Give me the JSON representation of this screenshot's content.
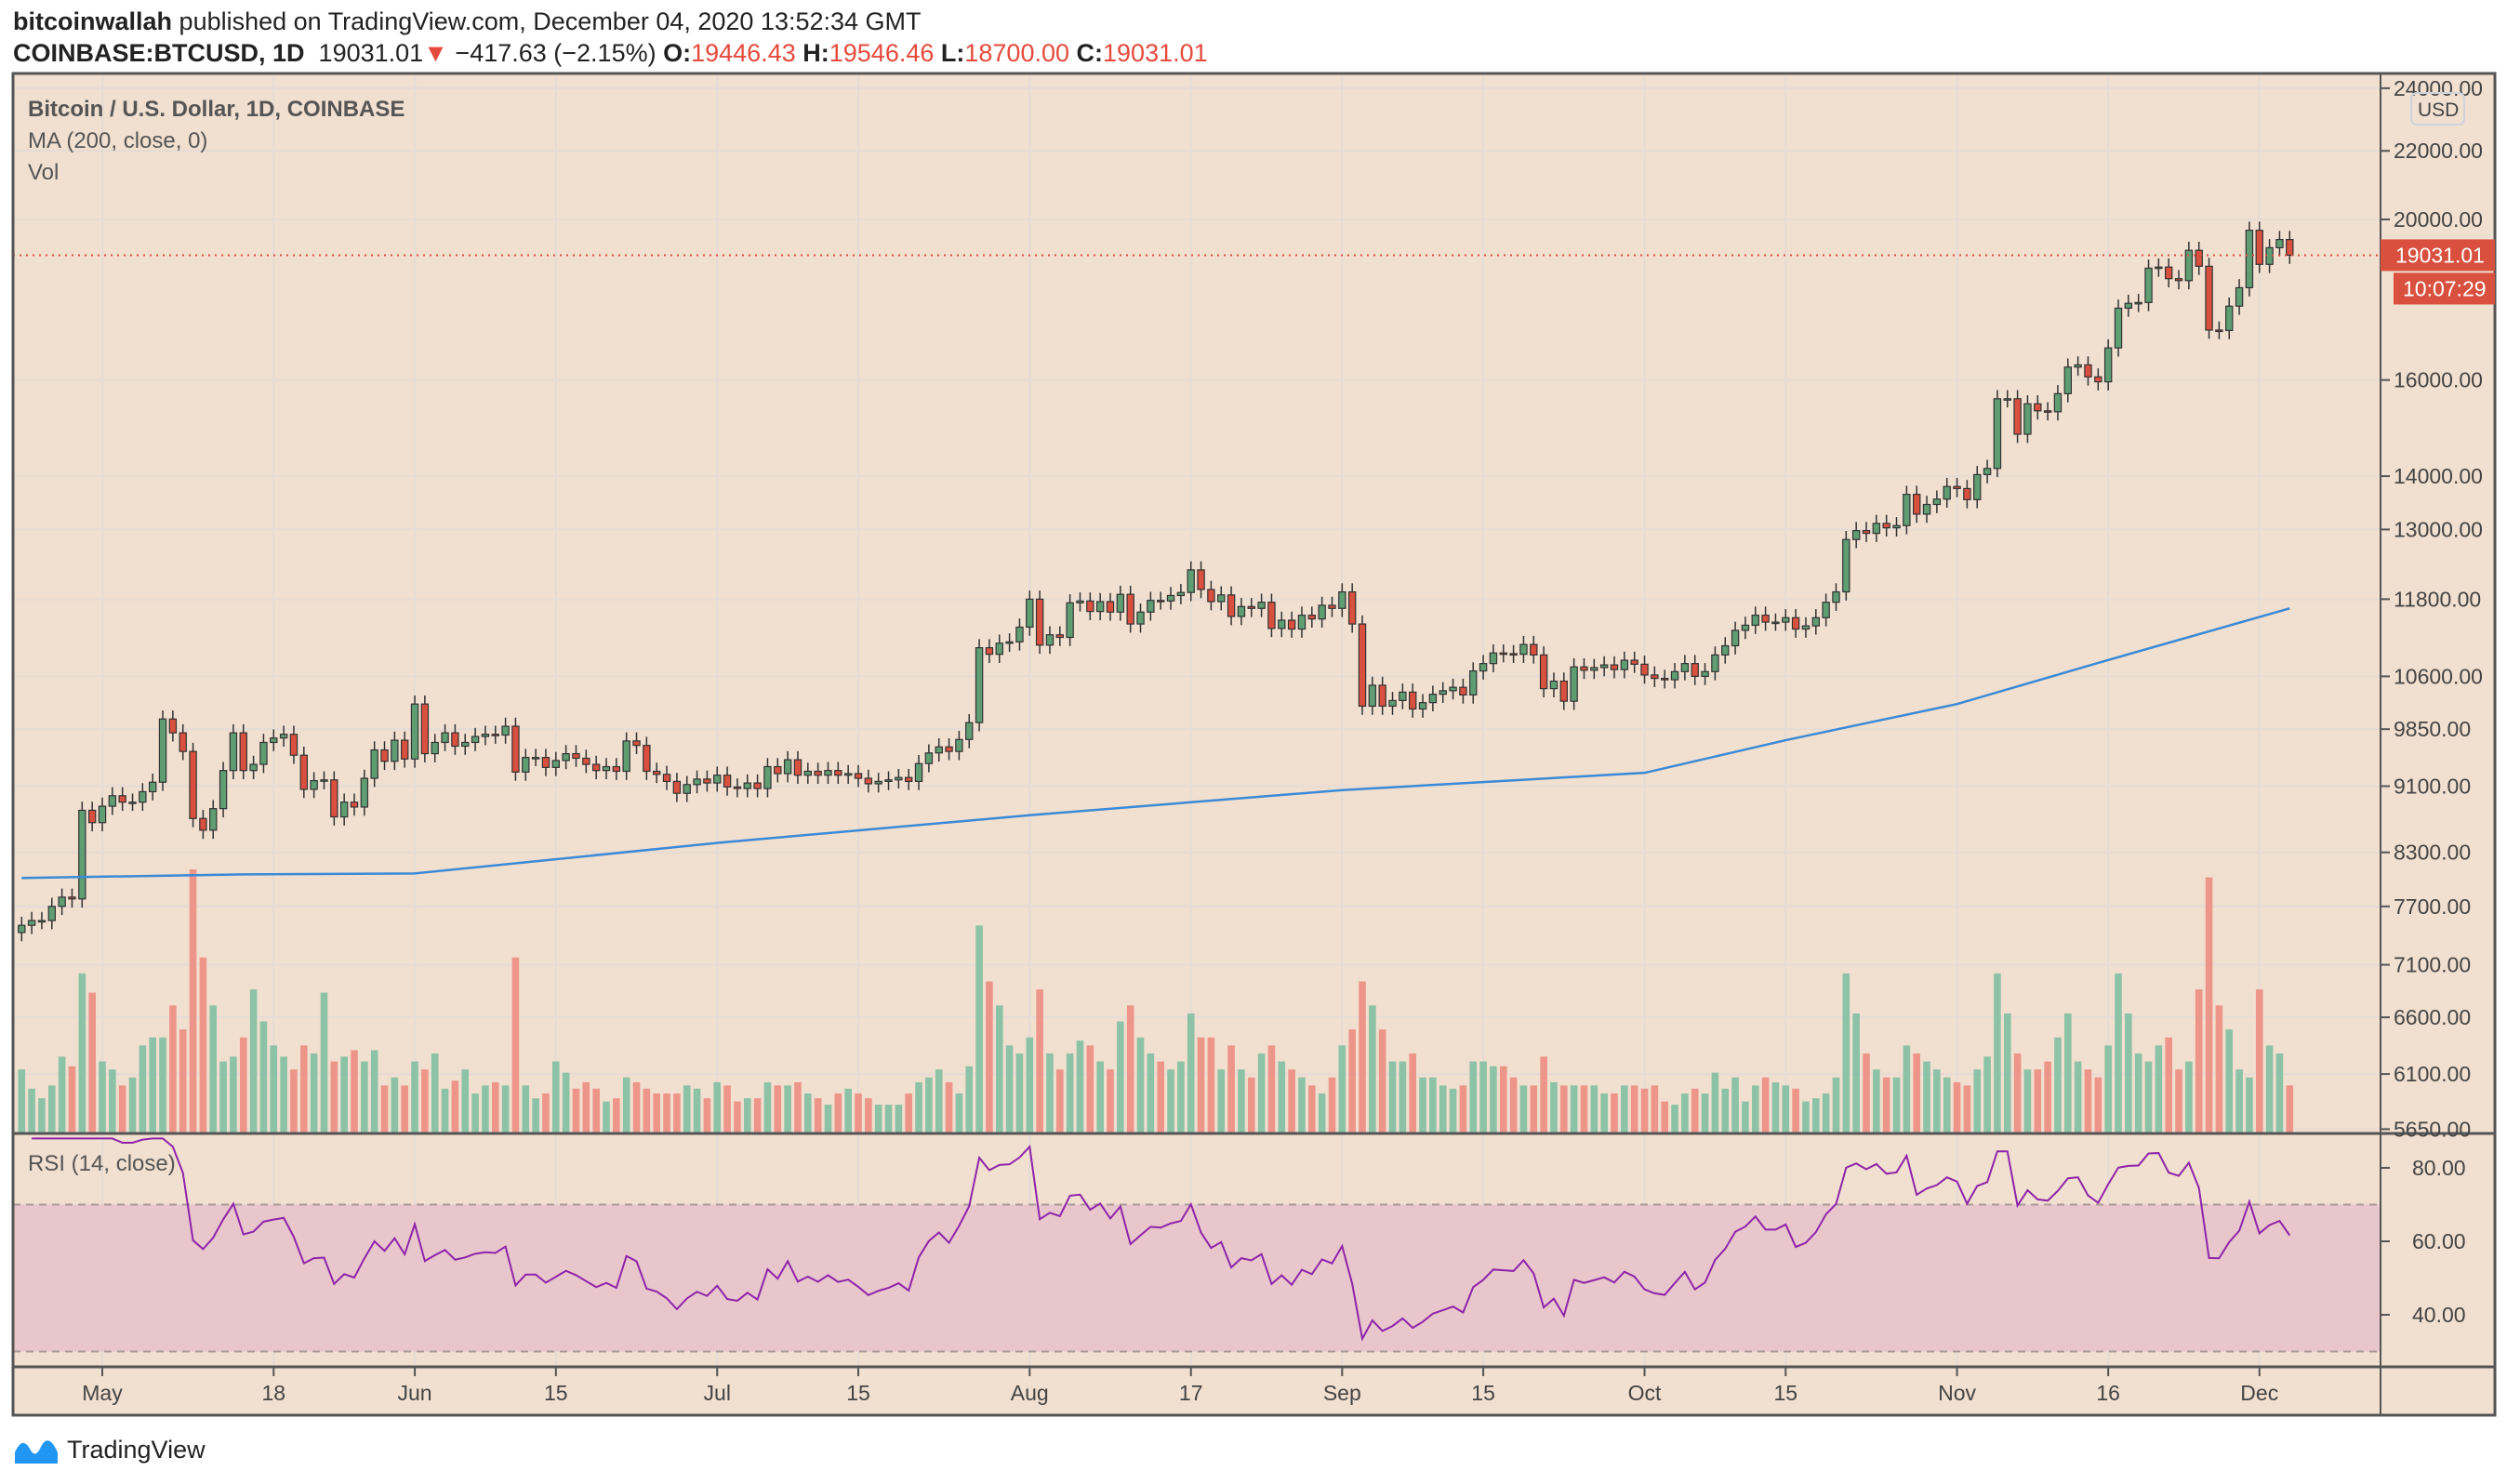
{
  "header": {
    "author": "bitcoinwallah",
    "published": "published on TradingView.com, December 04, 2020 13:52:34 GMT",
    "symbol": "COINBASE:BTCUSD, 1D",
    "last": "19031.01",
    "change": "−417.63 (−2.15%)",
    "o_label": "O:",
    "o": "19446.43",
    "h_label": "H:",
    "h": "19546.46",
    "l_label": "L:",
    "l": "18700.00",
    "c_label": "C:",
    "c": "19031.01"
  },
  "legend": {
    "title": "Bitcoin / U.S. Dollar, 1D, COINBASE",
    "ma": "MA (200, close, 0)",
    "vol": "Vol",
    "rsi": "RSI (14, close)"
  },
  "price_axis": {
    "currency": "USD",
    "labels": [
      24000,
      22000,
      20000,
      16000,
      14000,
      13000,
      11800,
      10600,
      9850,
      9100,
      8300,
      7700,
      7100,
      6600,
      6100,
      5650
    ],
    "last_price": "19031.01",
    "countdown": "10:07:29"
  },
  "rsi_axis": {
    "labels": [
      80,
      60,
      40
    ],
    "upper_band": 70,
    "lower_band": 30
  },
  "time_axis": [
    {
      "date": "2020-05-01",
      "label": "May"
    },
    {
      "date": "2020-05-18",
      "label": "18"
    },
    {
      "date": "2020-06-01",
      "label": "Jun"
    },
    {
      "date": "2020-06-15",
      "label": "15"
    },
    {
      "date": "2020-07-01",
      "label": "Jul"
    },
    {
      "date": "2020-07-15",
      "label": "15"
    },
    {
      "date": "2020-08-01",
      "label": "Aug"
    },
    {
      "date": "2020-08-17",
      "label": "17"
    },
    {
      "date": "2020-09-01",
      "label": "Sep"
    },
    {
      "date": "2020-09-15",
      "label": "15"
    },
    {
      "date": "2020-10-01",
      "label": "Oct"
    },
    {
      "date": "2020-10-15",
      "label": "15"
    },
    {
      "date": "2020-11-01",
      "label": "Nov"
    },
    {
      "date": "2020-11-16",
      "label": "16"
    },
    {
      "date": "2020-12-01",
      "label": "Dec"
    }
  ],
  "colors": {
    "background": "#f1dfcf",
    "up": "#5e9e72",
    "down": "#d9503f",
    "vol_up": "#8cc3a6",
    "vol_down": "#ee958a",
    "ma": "#3a8ad8",
    "rsi": "#8e24aa",
    "rsi_fill": "#e8c6cc",
    "last_price": "#d9503f"
  },
  "chart_data": {
    "type": "candlestick",
    "scale": "log",
    "start_date": "2020-04-23",
    "close": [
      7500,
      7550,
      7550,
      7700,
      7800,
      7780,
      8800,
      8650,
      8850,
      8980,
      8900,
      8900,
      9030,
      9150,
      9990,
      9800,
      9550,
      8700,
      8560,
      8820,
      9300,
      9800,
      9300,
      9380,
      9670,
      9730,
      9780,
      9500,
      9060,
      9170,
      9180,
      8720,
      8900,
      8840,
      9200,
      9570,
      9420,
      9700,
      9450,
      10200,
      9520,
      9670,
      9800,
      9620,
      9670,
      9750,
      9780,
      9770,
      9890,
      9280,
      9470,
      9470,
      9340,
      9430,
      9520,
      9460,
      9380,
      9300,
      9350,
      9290,
      9690,
      9630,
      9290,
      9250,
      9160,
      9010,
      9120,
      9190,
      9140,
      9240,
      9090,
      9070,
      9140,
      9070,
      9350,
      9260,
      9440,
      9240,
      9290,
      9240,
      9300,
      9240,
      9260,
      9200,
      9130,
      9160,
      9180,
      9210,
      9160,
      9390,
      9530,
      9610,
      9550,
      9710,
      9940,
      11030,
      10930,
      11100,
      11120,
      11350,
      11800,
      11070,
      11230,
      11190,
      11740,
      11770,
      11600,
      11760,
      11590,
      11880,
      11400,
      11590,
      11780,
      11770,
      11860,
      11910,
      12290,
      11960,
      11760,
      11870,
      11520,
      11680,
      11650,
      11750,
      11330,
      11460,
      11320,
      11540,
      11480,
      11700,
      11650,
      11920,
      11400,
      10170,
      10470,
      10170,
      10250,
      10370,
      10130,
      10220,
      10340,
      10390,
      10440,
      10330,
      10680,
      10790,
      10950,
      10940,
      10930,
      11080,
      10920,
      10420,
      10530,
      10240,
      10740,
      10690,
      10730,
      10770,
      10700,
      10840,
      10780,
      10620,
      10570,
      10550,
      10670,
      10790,
      10600,
      10670,
      10920,
      11060,
      11300,
      11380,
      11540,
      11430,
      11430,
      11500,
      11320,
      11370,
      11500,
      11750,
      11920,
      12820,
      12980,
      12930,
      13110,
      13030,
      13070,
      13650,
      13280,
      13460,
      13560,
      13800,
      13760,
      13550,
      14030,
      14150,
      15590,
      15590,
      14840,
      15480,
      15330,
      15310,
      15700,
      16290,
      16340,
      16070,
      15960,
      16730,
      17680,
      17800,
      17820,
      18690,
      18720,
      18420,
      18370,
      19160,
      18740,
      17150,
      17140,
      17730,
      18190,
      19700,
      18790,
      19230,
      19450,
      19031.01
    ],
    "volume": [
      40,
      28,
      22,
      30,
      48,
      42,
      100,
      88,
      45,
      40,
      30,
      35,
      55,
      60,
      60,
      80,
      65,
      165,
      110,
      80,
      45,
      48,
      60,
      90,
      70,
      55,
      48,
      40,
      55,
      50,
      88,
      45,
      48,
      52,
      45,
      52,
      30,
      35,
      30,
      45,
      40,
      50,
      28,
      33,
      40,
      25,
      30,
      32,
      30,
      110,
      30,
      22,
      25,
      45,
      38,
      28,
      32,
      28,
      20,
      22,
      35,
      32,
      28,
      25,
      25,
      25,
      30,
      28,
      22,
      32,
      30,
      20,
      22,
      22,
      32,
      30,
      30,
      32,
      25,
      22,
      18,
      25,
      28,
      25,
      22,
      18,
      18,
      18,
      25,
      32,
      35,
      40,
      32,
      25,
      42,
      130,
      95,
      80,
      55,
      50,
      60,
      90,
      50,
      40,
      50,
      58,
      55,
      45,
      40,
      70,
      80,
      60,
      50,
      45,
      40,
      45,
      75,
      60,
      60,
      40,
      55,
      40,
      35,
      50,
      55,
      45,
      40,
      35,
      30,
      25,
      35,
      55,
      65,
      95,
      80,
      65,
      45,
      45,
      50,
      35,
      35,
      30,
      28,
      30,
      45,
      45,
      42,
      42,
      35,
      30,
      30,
      48,
      32,
      30,
      30,
      30,
      30,
      25,
      25,
      30,
      30,
      28,
      30,
      20,
      18,
      25,
      28,
      25,
      38,
      28,
      35,
      20,
      30,
      35,
      32,
      30,
      28,
      20,
      22,
      25,
      35,
      100,
      75,
      50,
      40,
      35,
      35,
      55,
      50,
      45,
      40,
      35,
      32,
      30,
      40,
      48,
      100,
      75,
      50,
      40,
      40,
      45,
      60,
      75,
      45,
      40,
      35,
      55,
      100,
      75,
      50,
      45,
      55,
      60,
      40,
      45,
      90,
      160,
      80,
      65,
      40,
      35,
      90,
      55,
      50,
      30
    ],
    "ma200": [
      {
        "date": "2020-04-23",
        "value": 8010
      },
      {
        "date": "2020-05-15",
        "value": 8050
      },
      {
        "date": "2020-06-01",
        "value": 8060
      },
      {
        "date": "2020-07-01",
        "value": 8410
      },
      {
        "date": "2020-08-01",
        "value": 8740
      },
      {
        "date": "2020-09-01",
        "value": 9050
      },
      {
        "date": "2020-10-01",
        "value": 9270
      },
      {
        "date": "2020-10-15",
        "value": 9700
      },
      {
        "date": "2020-11-01",
        "value": 10200
      },
      {
        "date": "2020-11-15",
        "value": 10800
      },
      {
        "date": "2020-12-04",
        "value": 11650
      }
    ]
  }
}
